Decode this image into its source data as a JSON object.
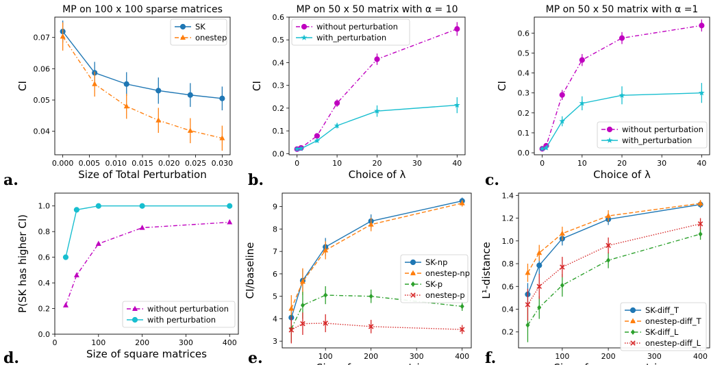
{
  "chart_data": [
    {
      "id": "a",
      "type": "line",
      "panel_label": "a.",
      "title": "MP on 100 x 100 sparse matrices",
      "xlabel": "Size of Total Perturbation",
      "ylabel": "CI",
      "xlim": [
        -0.0015,
        0.0315
      ],
      "ylim": [
        0.0325,
        0.0765
      ],
      "xticks": [
        0.0,
        0.005,
        0.01,
        0.015,
        0.02,
        0.025,
        0.03
      ],
      "xtick_labels": [
        "0.000",
        "0.005",
        "0.010",
        "0.015",
        "0.020",
        "0.025",
        "0.030"
      ],
      "yticks": [
        0.04,
        0.05,
        0.06,
        0.07
      ],
      "ytick_labels": [
        "0.04",
        "0.05",
        "0.06",
        "0.07"
      ],
      "legend_position": "top-right",
      "series": [
        {
          "name": "SK",
          "color": "#1f77b4",
          "marker": "circle",
          "dash": "",
          "x": [
            0.0,
            0.006,
            0.012,
            0.018,
            0.024,
            0.03
          ],
          "y": [
            0.0719,
            0.0587,
            0.0551,
            0.053,
            0.0516,
            0.0505
          ],
          "err": [
            0.0035,
            0.0035,
            0.0038,
            0.0042,
            0.0038,
            0.0038
          ]
        },
        {
          "name": "onestep",
          "color": "#ff7f0e",
          "marker": "triangle",
          "dash": "6,3,1.5,3",
          "x": [
            0.0,
            0.006,
            0.012,
            0.018,
            0.024,
            0.03
          ],
          "y": [
            0.0703,
            0.0551,
            0.048,
            0.0435,
            0.0402,
            0.0378
          ],
          "err": [
            0.0045,
            0.004,
            0.004,
            0.004,
            0.004,
            0.004
          ]
        }
      ]
    },
    {
      "id": "b",
      "type": "line",
      "panel_label": "b.",
      "title": "MP on 50 x 50 matrix with α = 10",
      "xlabel": "Choice of λ",
      "ylabel": "CI",
      "xlim": [
        -2,
        42
      ],
      "ylim": [
        -0.005,
        0.6
      ],
      "xticks": [
        0,
        10,
        20,
        30,
        40
      ],
      "xtick_labels": [
        "0",
        "10",
        "20",
        "30",
        "40"
      ],
      "yticks": [
        0.0,
        0.1,
        0.2,
        0.3,
        0.4,
        0.5,
        0.6
      ],
      "ytick_labels": [
        "0.0",
        "0.1",
        "0.2",
        "0.3",
        "0.4",
        "0.5",
        "0.6"
      ],
      "legend_position": "top-left",
      "series": [
        {
          "name": "without perturbation",
          "color": "#bf00bf",
          "marker": "circle",
          "dash": "6,3,1.5,3",
          "x": [
            0,
            1,
            5,
            10,
            20,
            40
          ],
          "y": [
            0.02,
            0.025,
            0.078,
            0.222,
            0.415,
            0.548
          ],
          "err": [
            0.005,
            0.005,
            0.008,
            0.016,
            0.025,
            0.03
          ]
        },
        {
          "name": "with_perturbation",
          "color": "#17becf",
          "marker": "star",
          "dash": "",
          "x": [
            0,
            1,
            5,
            10,
            20,
            40
          ],
          "y": [
            0.02,
            0.022,
            0.057,
            0.123,
            0.187,
            0.213
          ],
          "err": [
            0.005,
            0.005,
            0.008,
            0.012,
            0.025,
            0.035
          ]
        }
      ]
    },
    {
      "id": "c",
      "type": "line",
      "panel_label": "c.",
      "title": "MP on 50 x 50 matrix with α =1",
      "xlabel": "Choice of λ",
      "ylabel": "CI",
      "xlim": [
        -2,
        42
      ],
      "ylim": [
        -0.01,
        0.68
      ],
      "xticks": [
        0,
        10,
        20,
        30,
        40
      ],
      "xtick_labels": [
        "0",
        "10",
        "20",
        "30",
        "40"
      ],
      "yticks": [
        0.0,
        0.1,
        0.2,
        0.3,
        0.4,
        0.5,
        0.6
      ],
      "ytick_labels": [
        "0.0",
        "0.1",
        "0.2",
        "0.3",
        "0.4",
        "0.5",
        "0.6"
      ],
      "legend_position": "bottom-right",
      "series": [
        {
          "name": "without perturbation",
          "color": "#bf00bf",
          "marker": "circle",
          "dash": "6,3,1.5,3",
          "x": [
            0,
            1,
            5,
            10,
            20,
            40
          ],
          "y": [
            0.02,
            0.035,
            0.29,
            0.465,
            0.575,
            0.638
          ],
          "err": [
            0.008,
            0.01,
            0.025,
            0.03,
            0.03,
            0.03
          ]
        },
        {
          "name": "with_perturbation",
          "color": "#17becf",
          "marker": "star",
          "dash": "",
          "x": [
            0,
            1,
            5,
            10,
            20,
            40
          ],
          "y": [
            0.02,
            0.025,
            0.158,
            0.248,
            0.288,
            0.3
          ],
          "err": [
            0.008,
            0.01,
            0.025,
            0.035,
            0.045,
            0.05
          ]
        }
      ]
    },
    {
      "id": "d",
      "type": "line",
      "panel_label": "d.",
      "title": "",
      "xlabel": "Size of square matrices",
      "ylabel": "P(SK has higher CI)",
      "xlim": [
        0,
        420
      ],
      "ylim": [
        0.0,
        1.1
      ],
      "xticks": [
        0,
        100,
        200,
        300,
        400
      ],
      "xtick_labels": [
        "0",
        "100",
        "200",
        "300",
        "400"
      ],
      "yticks": [
        0.0,
        0.2,
        0.4,
        0.6,
        0.8,
        1.0
      ],
      "ytick_labels": [
        "0.0",
        "0.2",
        "0.4",
        "0.6",
        "0.8",
        "1.0"
      ],
      "legend_position": "bottom-right",
      "series": [
        {
          "name": "without perturbation",
          "color": "#bf00bf",
          "marker": "triangle",
          "dash": "6,3,1.5,3",
          "x": [
            25,
            50,
            100,
            200,
            400
          ],
          "y": [
            0.225,
            0.46,
            0.705,
            0.83,
            0.873
          ],
          "err": []
        },
        {
          "name": "with perturbation",
          "color": "#17becf",
          "marker": "circle",
          "dash": "",
          "x": [
            25,
            50,
            100,
            200,
            400
          ],
          "y": [
            0.6,
            0.97,
            1.0,
            1.0,
            1.0
          ],
          "err": []
        }
      ]
    },
    {
      "id": "e",
      "type": "line",
      "panel_label": "e.",
      "title": "",
      "xlabel": "Size of square matrices",
      "ylabel": "CI/baseline",
      "xlim": [
        5,
        420
      ],
      "ylim": [
        2.7,
        9.6
      ],
      "xticks": [
        100,
        200,
        300,
        400
      ],
      "xtick_labels": [
        "100",
        "200",
        "300",
        "400"
      ],
      "yticks": [
        3,
        4,
        5,
        6,
        7,
        8,
        9
      ],
      "ytick_labels": [
        "3",
        "4",
        "5",
        "6",
        "7",
        "8",
        "9"
      ],
      "legend_position": "center-right",
      "series": [
        {
          "name": "SK-np",
          "color": "#1f77b4",
          "marker": "circle",
          "dash": "",
          "x": [
            25,
            50,
            100,
            200,
            400
          ],
          "y": [
            4.05,
            5.7,
            7.2,
            8.35,
            9.25
          ],
          "err": [
            0.5,
            0.5,
            0.4,
            0.3,
            0.15
          ]
        },
        {
          "name": "onestep-np",
          "color": "#ff7f0e",
          "marker": "triangle",
          "dash": "6,3",
          "x": [
            25,
            50,
            100,
            200,
            400
          ],
          "y": [
            4.45,
            5.65,
            7.05,
            8.2,
            9.15
          ],
          "err": [
            0.6,
            0.6,
            0.4,
            0.3,
            0.15
          ]
        },
        {
          "name": "SK-p",
          "color": "#2ca02c",
          "marker": "diamond",
          "dash": "6,3,1.5,3",
          "x": [
            25,
            50,
            100,
            200,
            400
          ],
          "y": [
            3.55,
            4.6,
            5.05,
            5.0,
            4.55
          ],
          "err": [
            0.6,
            0.6,
            0.4,
            0.3,
            0.2
          ]
        },
        {
          "name": "onestep-p",
          "color": "#d62728",
          "marker": "x",
          "dash": "1.5,2",
          "x": [
            25,
            50,
            100,
            200,
            400
          ],
          "y": [
            3.5,
            3.78,
            3.8,
            3.65,
            3.52
          ],
          "err": [
            0.6,
            0.5,
            0.4,
            0.3,
            0.2
          ]
        }
      ]
    },
    {
      "id": "f",
      "type": "line",
      "panel_label": "f.",
      "title": "",
      "xlabel": "Size of square matrices",
      "ylabel": "L¹-distance",
      "xlim": [
        5,
        420
      ],
      "ylim": [
        0.06,
        1.42
      ],
      "xticks": [
        100,
        200,
        300,
        400
      ],
      "xtick_labels": [
        "100",
        "200",
        "300",
        "400"
      ],
      "yticks": [
        0.2,
        0.4,
        0.6,
        0.8,
        1.0,
        1.2,
        1.4
      ],
      "ytick_labels": [
        "0.2",
        "0.4",
        "0.6",
        "0.8",
        "1.0",
        "1.2",
        "1.4"
      ],
      "legend_position": "bottom-right",
      "series": [
        {
          "name": "SK-diff_T",
          "color": "#1f77b4",
          "marker": "circle",
          "dash": "",
          "x": [
            25,
            50,
            100,
            200,
            400
          ],
          "y": [
            0.53,
            0.785,
            1.02,
            1.19,
            1.32
          ],
          "err": [
            0.1,
            0.08,
            0.06,
            0.05,
            0.03
          ]
        },
        {
          "name": "onestep-diff_T",
          "color": "#ff7f0e",
          "marker": "triangle",
          "dash": "6,3",
          "x": [
            25,
            50,
            100,
            200,
            400
          ],
          "y": [
            0.72,
            0.895,
            1.065,
            1.22,
            1.33
          ],
          "err": [
            0.08,
            0.07,
            0.06,
            0.05,
            0.03
          ]
        },
        {
          "name": "SK-diff_L",
          "color": "#2ca02c",
          "marker": "diamond",
          "dash": "6,3,1.5,3",
          "x": [
            25,
            50,
            100,
            200,
            400
          ],
          "y": [
            0.26,
            0.415,
            0.61,
            0.83,
            1.06
          ],
          "err": [
            0.15,
            0.1,
            0.1,
            0.07,
            0.05
          ]
        },
        {
          "name": "onestep-diff_L",
          "color": "#d62728",
          "marker": "x",
          "dash": "1.5,2",
          "x": [
            25,
            50,
            100,
            200,
            400
          ],
          "y": [
            0.44,
            0.6,
            0.77,
            0.96,
            1.15
          ],
          "err": [
            0.14,
            0.11,
            0.09,
            0.07,
            0.05
          ]
        }
      ]
    }
  ]
}
